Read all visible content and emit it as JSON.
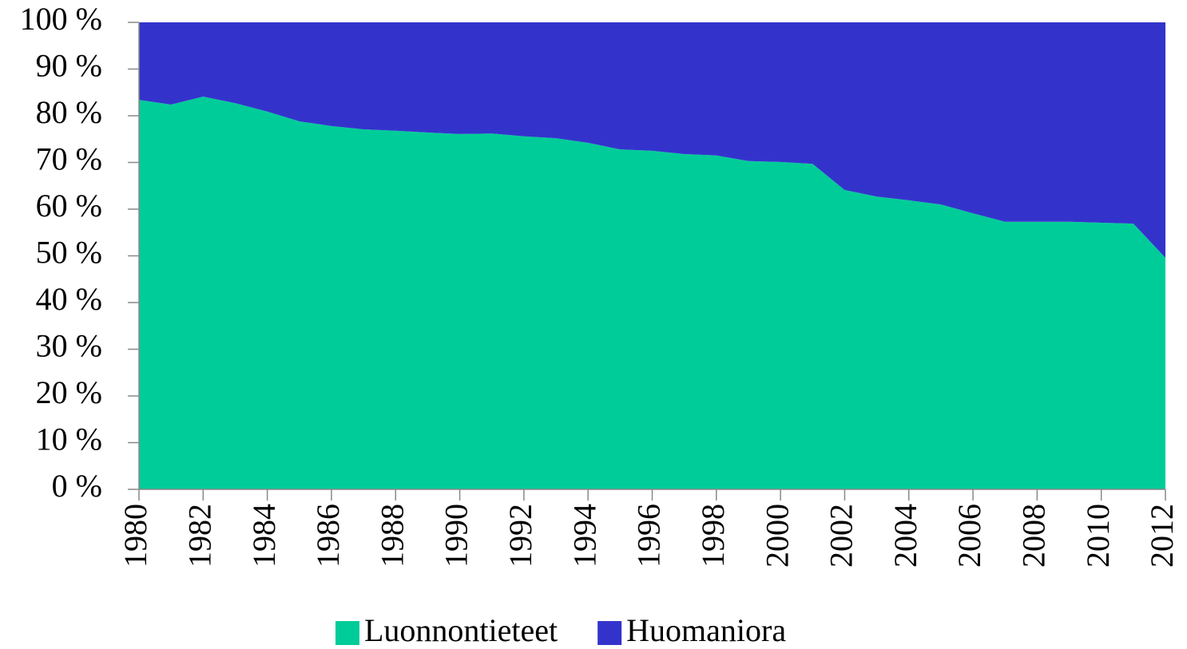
{
  "chart_data": {
    "type": "stacked-area",
    "x": [
      1980,
      1981,
      1982,
      1983,
      1984,
      1985,
      1986,
      1987,
      1988,
      1989,
      1990,
      1991,
      1992,
      1993,
      1994,
      1995,
      1996,
      1997,
      1998,
      1999,
      2000,
      2001,
      2002,
      2003,
      2004,
      2005,
      2006,
      2007,
      2008,
      2009,
      2010,
      2011,
      2012
    ],
    "xlim": [
      1980,
      2012
    ],
    "xticks": [
      1980,
      1982,
      1984,
      1986,
      1988,
      1990,
      1992,
      1994,
      1996,
      1998,
      2000,
      2002,
      2004,
      2006,
      2008,
      2010,
      2012
    ],
    "ylim": [
      0,
      100
    ],
    "yticks": [
      {
        "value": 0,
        "label": "0 %"
      },
      {
        "value": 10,
        "label": "10 %"
      },
      {
        "value": 20,
        "label": "20 %"
      },
      {
        "value": 30,
        "label": "30 %"
      },
      {
        "value": 40,
        "label": "40 %"
      },
      {
        "value": 50,
        "label": "50 %"
      },
      {
        "value": 60,
        "label": "60 %"
      },
      {
        "value": 70,
        "label": "70 %"
      },
      {
        "value": 80,
        "label": "80 %"
      },
      {
        "value": 90,
        "label": "90 %"
      },
      {
        "value": 100,
        "label": "100 %"
      }
    ],
    "legend": "bottom",
    "series": [
      {
        "name": "Luonnontieteet",
        "color": "#00cc99",
        "values": [
          83.4,
          82.4,
          84.1,
          82.7,
          80.9,
          78.8,
          77.8,
          77.1,
          76.8,
          76.4,
          76.1,
          76.2,
          75.6,
          75.2,
          74.2,
          72.8,
          72.5,
          71.8,
          71.5,
          70.3,
          70.1,
          69.7,
          64.1,
          62.7,
          61.9,
          61.0,
          59.1,
          57.3,
          57.3,
          57.3,
          57.1,
          56.9,
          49.6
        ]
      },
      {
        "name": "Huomaniora",
        "color": "#3333cc",
        "values": [
          16.6,
          17.6,
          15.9,
          17.3,
          19.1,
          21.2,
          22.2,
          22.9,
          23.2,
          23.6,
          23.9,
          23.8,
          24.4,
          24.8,
          25.8,
          27.2,
          27.5,
          28.2,
          28.5,
          29.7,
          29.9,
          30.3,
          35.9,
          37.3,
          38.1,
          39.0,
          40.9,
          42.7,
          42.7,
          42.7,
          42.9,
          43.1,
          50.4
        ]
      }
    ]
  }
}
